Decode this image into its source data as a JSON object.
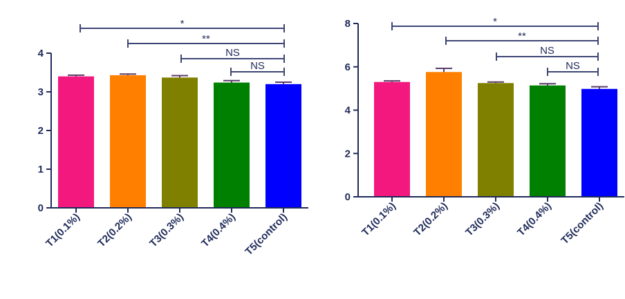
{
  "chart_data": [
    {
      "type": "bar",
      "categories": [
        "T1(0.1%)",
        "T2(0.2%)",
        "T3(0.3%)",
        "T4(0.4%)",
        "T5(control)"
      ],
      "values": [
        3.4,
        3.43,
        3.37,
        3.24,
        3.2
      ],
      "errors": [
        0.03,
        0.03,
        0.05,
        0.05,
        0.05
      ],
      "colors": [
        "#f2187d",
        "#ff8000",
        "#808000",
        "#008000",
        "#0000ff"
      ],
      "ylim": [
        0,
        4
      ],
      "yticks": [
        0,
        1,
        2,
        3,
        4
      ],
      "title": "",
      "xlabel": "",
      "ylabel": "",
      "significance": [
        {
          "from": 0,
          "to": 4,
          "label": "*"
        },
        {
          "from": 1,
          "to": 4,
          "label": "**"
        },
        {
          "from": 2,
          "to": 4,
          "label": "NS"
        },
        {
          "from": 3,
          "to": 4,
          "label": "NS"
        }
      ]
    },
    {
      "type": "bar",
      "categories": [
        "T1(0.1%)",
        "T2(0.2%)",
        "T3(0.3%)",
        "T4(0.4%)",
        "T5(control)"
      ],
      "values": [
        5.3,
        5.76,
        5.25,
        5.14,
        4.98
      ],
      "errors": [
        0.05,
        0.17,
        0.05,
        0.08,
        0.1
      ],
      "colors": [
        "#f2187d",
        "#ff8000",
        "#808000",
        "#008000",
        "#0000ff"
      ],
      "ylim": [
        0,
        8
      ],
      "yticks": [
        0,
        2,
        4,
        6,
        8
      ],
      "title": "",
      "xlabel": "",
      "ylabel": "",
      "significance": [
        {
          "from": 0,
          "to": 4,
          "label": "*"
        },
        {
          "from": 1,
          "to": 4,
          "label": "**"
        },
        {
          "from": 2,
          "to": 4,
          "label": "NS"
        },
        {
          "from": 3,
          "to": 4,
          "label": "NS"
        }
      ]
    }
  ],
  "colors": {
    "axis": "#1f2a5a",
    "sig_line": "#3d4575",
    "error_bar": "#5a3a6a"
  }
}
